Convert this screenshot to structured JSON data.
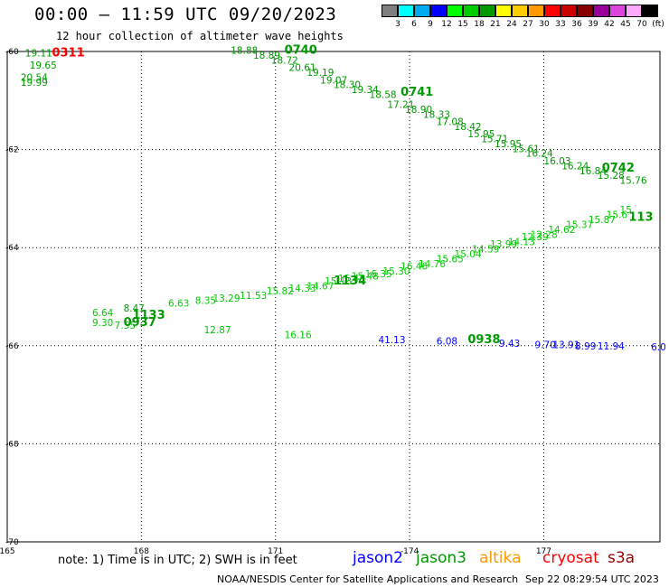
{
  "header": {
    "title": "00:00 – 11:59 UTC 09/20/2023",
    "subtitle": "12 hour collection of altimeter wave heights"
  },
  "legend": {
    "unit": "(ft)",
    "bins": [
      {
        "label": "3",
        "color": "#808080"
      },
      {
        "label": "6",
        "color": "#00ffff"
      },
      {
        "label": "9",
        "color": "#00aaee"
      },
      {
        "label": "12",
        "color": "#0000ff"
      },
      {
        "label": "15",
        "color": "#00ff00"
      },
      {
        "label": "18",
        "color": "#00cc00"
      },
      {
        "label": "21",
        "color": "#009900"
      },
      {
        "label": "24",
        "color": "#ffff00"
      },
      {
        "label": "27",
        "color": "#ffcc00"
      },
      {
        "label": "30",
        "color": "#ff9900"
      },
      {
        "label": "33",
        "color": "#ff0000"
      },
      {
        "label": "36",
        "color": "#cc0000"
      },
      {
        "label": "39",
        "color": "#880000"
      },
      {
        "label": "42",
        "color": "#990099"
      },
      {
        "label": "45",
        "color": "#dd44dd"
      },
      {
        "label": "70",
        "color": "#ffaaff"
      },
      {
        "label": "",
        "color": "#000000"
      }
    ]
  },
  "axes": {
    "lon_ticks": [
      "165",
      "168",
      "171",
      "-174",
      "177"
    ],
    "lat_ticks": [
      "-60",
      "-62",
      "-64",
      "-66",
      "-68",
      "-70"
    ]
  },
  "tracks": [
    {
      "id": "t1",
      "color": "#009900",
      "time": "0311",
      "time_color": "#ff0000",
      "time_pos": {
        "lon": 166.0,
        "lat": -60.1
      },
      "points": [
        {
          "v": "19.11",
          "lon": 165.4,
          "lat": -60.1
        },
        {
          "v": "19.65",
          "lon": 165.5,
          "lat": -60.35
        },
        {
          "v": "20.54",
          "lon": 165.3,
          "lat": -60.6
        },
        {
          "v": "19.99",
          "lon": 165.3,
          "lat": -60.7
        }
      ]
    },
    {
      "id": "t2",
      "color": "#009900",
      "time": "0740",
      "time_color": "#009900",
      "time_pos": {
        "lon": 171.2,
        "lat": -60.05
      },
      "points": [
        {
          "v": "18.88",
          "lon": 170.0,
          "lat": -60.05
        },
        {
          "v": "18.89",
          "lon": 170.5,
          "lat": -60.15
        },
        {
          "v": "18.72",
          "lon": 170.9,
          "lat": -60.25
        },
        {
          "v": "20.61",
          "lon": 171.3,
          "lat": -60.4
        },
        {
          "v": "19.19",
          "lon": 171.7,
          "lat": -60.5
        },
        {
          "v": "19.07",
          "lon": 172.0,
          "lat": -60.65
        },
        {
          "v": "18.30",
          "lon": 172.3,
          "lat": -60.75
        },
        {
          "v": "19.34",
          "lon": 172.7,
          "lat": -60.85
        },
        {
          "v": "18.58",
          "lon": 173.1,
          "lat": -60.95
        },
        {
          "v": "17.21",
          "lon": 173.5,
          "lat": -61.15
        },
        {
          "v": "18.90",
          "lon": 173.9,
          "lat": -61.25
        },
        {
          "v": "18.33",
          "lon": 174.3,
          "lat": -61.35
        },
        {
          "v": "17.08",
          "lon": 174.6,
          "lat": -61.5
        },
        {
          "v": "18.42",
          "lon": 175.0,
          "lat": -61.6
        },
        {
          "v": "15.95",
          "lon": 175.3,
          "lat": -61.75
        },
        {
          "v": "15.71",
          "lon": 175.6,
          "lat": -61.85
        },
        {
          "v": "15.95",
          "lon": 175.9,
          "lat": -61.95
        },
        {
          "v": "15.61",
          "lon": 176.3,
          "lat": -62.05
        },
        {
          "v": "16.24",
          "lon": 176.6,
          "lat": -62.15
        },
        {
          "v": "16.03",
          "lon": 177.0,
          "lat": -62.3
        },
        {
          "v": "16.24",
          "lon": 177.4,
          "lat": -62.4
        },
        {
          "v": "16.84",
          "lon": 177.8,
          "lat": -62.5
        },
        {
          "v": "15.28",
          "lon": 178.2,
          "lat": -62.6
        },
        {
          "v": "15.76",
          "lon": 178.7,
          "lat": -62.7
        }
      ]
    },
    {
      "id": "t3",
      "color": "#009900",
      "time": "0741",
      "time_color": "#009900",
      "time_pos": {
        "lon": 173.8,
        "lat": -60.9
      },
      "points": []
    },
    {
      "id": "t4",
      "color": "#009900",
      "time": "0742",
      "time_color": "#009900",
      "time_pos": {
        "lon": 178.3,
        "lat": -62.45
      },
      "points": []
    },
    {
      "id": "t5",
      "color": "#00cc00",
      "time": "1134",
      "time_color": "#009900",
      "time_pos": {
        "lon": 172.3,
        "lat": -64.75
      },
      "points": [
        {
          "v": "6.64",
          "lon": 166.9,
          "lat": -65.4
        },
        {
          "v": "9.30",
          "lon": 166.9,
          "lat": -65.6
        },
        {
          "v": "7.55",
          "lon": 167.4,
          "lat": -65.65
        },
        {
          "v": "6.63",
          "lon": 168.6,
          "lat": -65.2
        },
        {
          "v": "8.35",
          "lon": 169.2,
          "lat": -65.15
        },
        {
          "v": "13.29",
          "lon": 169.6,
          "lat": -65.1
        },
        {
          "v": "11.53",
          "lon": 170.2,
          "lat": -65.05
        },
        {
          "v": "15.82",
          "lon": 170.8,
          "lat": -64.95
        },
        {
          "v": "14.33",
          "lon": 171.3,
          "lat": -64.9
        },
        {
          "v": "14.67",
          "lon": 171.7,
          "lat": -64.85
        },
        {
          "v": "15.13",
          "lon": 172.1,
          "lat": -64.75
        },
        {
          "v": "15.45",
          "lon": 172.4,
          "lat": -64.7
        },
        {
          "v": "15.48",
          "lon": 172.7,
          "lat": -64.65
        },
        {
          "v": "16.35",
          "lon": 173.0,
          "lat": -64.6
        },
        {
          "v": "15.30",
          "lon": 173.4,
          "lat": -64.55
        },
        {
          "v": "16.46",
          "lon": 173.8,
          "lat": -64.45
        },
        {
          "v": "14.76",
          "lon": 174.2,
          "lat": -64.4
        },
        {
          "v": "15.65",
          "lon": 174.6,
          "lat": -64.3
        },
        {
          "v": "15.04",
          "lon": 175.0,
          "lat": -64.2
        },
        {
          "v": "14.59",
          "lon": 175.4,
          "lat": -64.1
        },
        {
          "v": "13.99",
          "lon": 175.8,
          "lat": -64.0
        },
        {
          "v": "14.13",
          "lon": 176.2,
          "lat": -63.95
        },
        {
          "v": "12.39",
          "lon": 176.5,
          "lat": -63.85
        },
        {
          "v": "12.28",
          "lon": 176.7,
          "lat": -63.8
        },
        {
          "v": "14.62",
          "lon": 177.1,
          "lat": -63.7
        },
        {
          "v": "15.37",
          "lon": 177.5,
          "lat": -63.6
        },
        {
          "v": "15.87",
          "lon": 178.0,
          "lat": -63.5
        },
        {
          "v": "15.6",
          "lon": 178.4,
          "lat": -63.4
        },
        {
          "v": "15.",
          "lon": 178.7,
          "lat": -63.3
        }
      ]
    },
    {
      "id": "t6",
      "color": "#009900",
      "time": "1133",
      "time_color": "#009900",
      "time_pos": {
        "lon": 167.8,
        "lat": -65.45
      },
      "points": [
        {
          "v": "8.47",
          "lon": 167.6,
          "lat": -65.3
        }
      ]
    },
    {
      "id": "t7",
      "color": "#009900",
      "time": "113",
      "time_color": "#009900",
      "time_pos": {
        "lon": 178.9,
        "lat": -63.45
      },
      "points": []
    },
    {
      "id": "t8",
      "color": "#009900",
      "time": "0937",
      "time_color": "#009900",
      "time_pos": {
        "lon": 167.6,
        "lat": -65.6
      },
      "points": []
    },
    {
      "id": "t9",
      "color": "#00cc00",
      "time": "",
      "time_color": "#009900",
      "time_pos": {
        "lon": 0,
        "lat": 0
      },
      "points": [
        {
          "v": "12.87",
          "lon": 169.4,
          "lat": -65.75
        },
        {
          "v": "16.16",
          "lon": 171.2,
          "lat": -65.85
        }
      ]
    },
    {
      "id": "t10",
      "color": "#0000ff",
      "time": "0938",
      "time_color": "#009900",
      "time_pos": {
        "lon": 175.3,
        "lat": -65.95
      },
      "points": [
        {
          "v": "41.13",
          "lon": 173.3,
          "lat": -65.95
        },
        {
          "v": "6.08",
          "lon": 174.6,
          "lat": -65.98
        },
        {
          "v": "9.43",
          "lon": 176.0,
          "lat": -66.02
        },
        {
          "v": "9.70",
          "lon": 176.8,
          "lat": -66.05
        },
        {
          "v": "13.91",
          "lon": 177.2,
          "lat": -66.05
        },
        {
          "v": "8.99",
          "lon": 177.7,
          "lat": -66.08
        },
        {
          "v": "11.94",
          "lon": 178.2,
          "lat": -66.08
        },
        {
          "v": "6.0",
          "lon": 179.4,
          "lat": -66.1
        }
      ]
    }
  ],
  "satellites": [
    {
      "name": "jason2",
      "color": "#0000ff"
    },
    {
      "name": "jason3",
      "color": "#009900"
    },
    {
      "name": "altika",
      "color": "#ff9900"
    },
    {
      "name": "cryosat",
      "color": "#ff0000"
    },
    {
      "name": "s3a",
      "color": "#990000"
    }
  ],
  "footer": {
    "note": "note: 1) Time is in UTC; 2) SWH is in feet",
    "credit": "NOAA/NESDIS Center for Satellite Applications and Research",
    "timestamp": "Sep 22 08:29:54 UTC 2023"
  }
}
